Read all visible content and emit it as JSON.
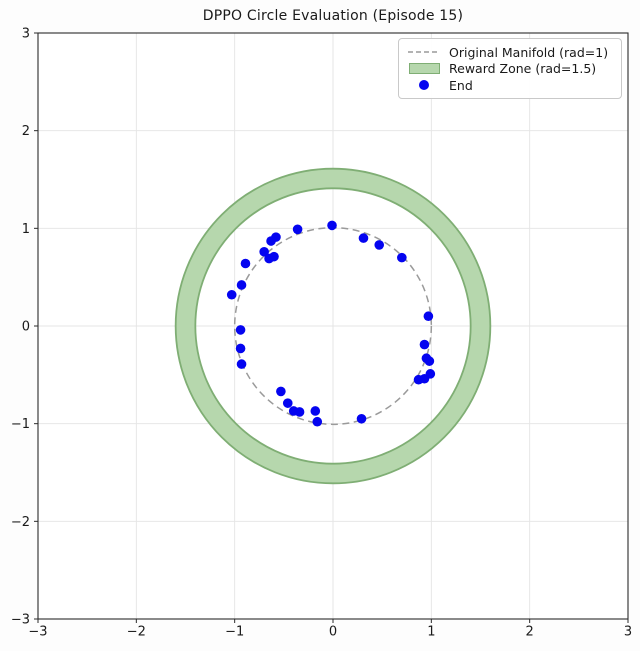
{
  "chart_data": {
    "type": "scatter",
    "title": "DPPO Circle Evaluation (Episode 15)",
    "xlabel": "",
    "ylabel": "",
    "xlim": [
      -3,
      3
    ],
    "ylim": [
      -3,
      3
    ],
    "xticks": [
      -3,
      -2,
      -1,
      0,
      1,
      2,
      3
    ],
    "yticks": [
      -3,
      -2,
      -1,
      0,
      1,
      2,
      3
    ],
    "xtick_labels": [
      "−3",
      "−2",
      "−1",
      "0",
      "1",
      "2",
      "3"
    ],
    "ytick_labels": [
      "−3",
      "−2",
      "−1",
      "0",
      "1",
      "2",
      "3"
    ],
    "grid": true,
    "grid_color": "#e4e4e4",
    "spine_color": "#2b2b2b",
    "tick_label_color": "#1a1a1a",
    "legend": {
      "position": "upper right",
      "entries": [
        {
          "label": "Original Manifold (rad=1)",
          "handle": "dashed-line",
          "color": "#9a9a9a"
        },
        {
          "label": "Reward Zone (rad=1.5)",
          "handle": "patch",
          "fill": "#b6d7ad",
          "edge": "#7fae74"
        },
        {
          "label": "End",
          "handle": "marker",
          "color": "#0404f0"
        }
      ]
    },
    "original_manifold": {
      "radius": 1,
      "line_style": "dashed",
      "color": "#9a9a9a"
    },
    "reward_zone": {
      "radius": 1.5,
      "band_inner": 1.4,
      "band_outer": 1.6,
      "fill": "#b6d7ad",
      "edge": "#7fae74"
    },
    "series": [
      {
        "name": "End",
        "marker": "circle",
        "color": "#0404f0",
        "points": [
          [
            -0.01,
            1.03
          ],
          [
            -0.36,
            0.99
          ],
          [
            -0.58,
            0.91
          ],
          [
            -0.63,
            0.87
          ],
          [
            -0.7,
            0.76
          ],
          [
            -0.6,
            0.71
          ],
          [
            -0.65,
            0.69
          ],
          [
            -0.89,
            0.64
          ],
          [
            -0.93,
            0.42
          ],
          [
            -1.03,
            0.32
          ],
          [
            -0.94,
            -0.04
          ],
          [
            -0.94,
            -0.23
          ],
          [
            -0.93,
            -0.39
          ],
          [
            -0.53,
            -0.67
          ],
          [
            -0.46,
            -0.79
          ],
          [
            -0.4,
            -0.87
          ],
          [
            -0.34,
            -0.88
          ],
          [
            -0.18,
            -0.87
          ],
          [
            -0.16,
            -0.98
          ],
          [
            0.29,
            -0.95
          ],
          [
            0.31,
            0.9
          ],
          [
            0.47,
            0.83
          ],
          [
            0.7,
            0.7
          ],
          [
            0.97,
            0.1
          ],
          [
            0.93,
            -0.19
          ],
          [
            0.95,
            -0.33
          ],
          [
            0.98,
            -0.36
          ],
          [
            0.99,
            -0.49
          ],
          [
            0.87,
            -0.55
          ],
          [
            0.93,
            -0.54
          ]
        ]
      }
    ]
  }
}
